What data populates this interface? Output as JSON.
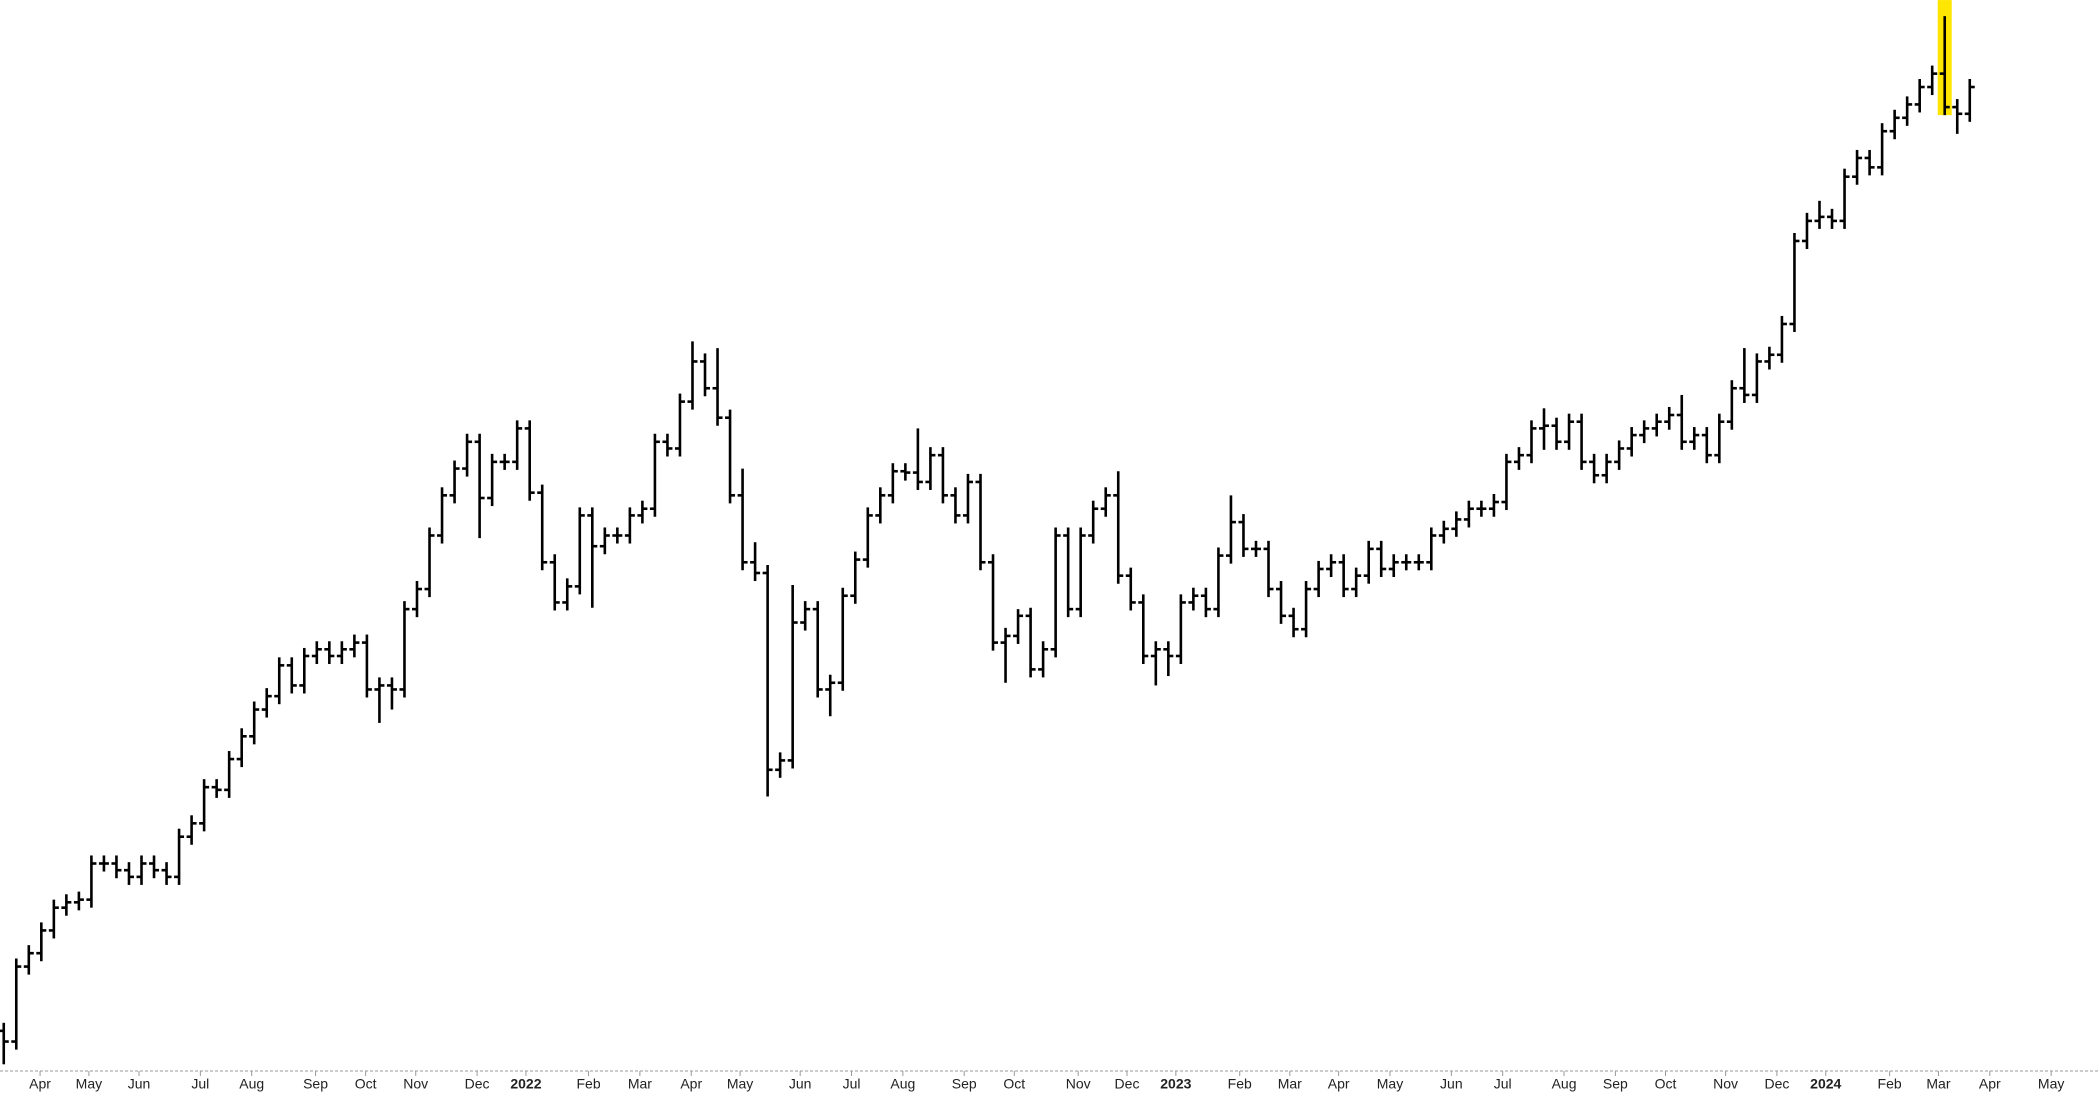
{
  "chart_data": {
    "type": "ohlc",
    "color": "#000000",
    "xlim": [
      -0.3,
      167.4
    ],
    "ylim": [
      0,
      800
    ],
    "highlight": {
      "index": 155,
      "color": "#ffe600"
    },
    "open": [
      30,
      22,
      78,
      88,
      105,
      122,
      126,
      128,
      155,
      155,
      150,
      145,
      155,
      150,
      145,
      175,
      185,
      212,
      210,
      233,
      250,
      270,
      280,
      303,
      288,
      310,
      315,
      310,
      315,
      320,
      285,
      288,
      285,
      345,
      360,
      400,
      430,
      450,
      470,
      428,
      455,
      455,
      480,
      432,
      380,
      350,
      362,
      415,
      392,
      400,
      400,
      415,
      420,
      470,
      465,
      500,
      530,
      510,
      488,
      430,
      380,
      372,
      225,
      232,
      335,
      345,
      285,
      290,
      355,
      382,
      415,
      430,
      448,
      447,
      440,
      460,
      430,
      415,
      440,
      380,
      320,
      325,
      340,
      300,
      315,
      400,
      345,
      400,
      420,
      430,
      370,
      350,
      310,
      315,
      310,
      350,
      355,
      345,
      385,
      410,
      390,
      390,
      360,
      340,
      330,
      360,
      375,
      380,
      360,
      370,
      390,
      375,
      380,
      380,
      380,
      400,
      405,
      412,
      420,
      420,
      425,
      455,
      460,
      480,
      482,
      470,
      485,
      455,
      445,
      455,
      465,
      475,
      480,
      485,
      490,
      470,
      475,
      460,
      485,
      510,
      505,
      530,
      535,
      558,
      620,
      635,
      638,
      635,
      668,
      682,
      675,
      702,
      712,
      722,
      735,
      745,
      720,
      715
    ],
    "high": [
      36,
      84,
      94,
      111,
      128,
      132,
      134,
      161,
      161,
      161,
      156,
      161,
      161,
      156,
      181,
      191,
      218,
      218,
      239,
      256,
      276,
      286,
      309,
      309,
      316,
      321,
      321,
      321,
      326,
      326,
      294,
      294,
      351,
      366,
      406,
      436,
      456,
      476,
      476,
      461,
      461,
      486,
      486,
      438,
      386,
      368,
      421,
      421,
      406,
      406,
      421,
      426,
      476,
      476,
      506,
      545,
      536,
      540,
      494,
      450,
      395,
      378,
      238,
      363,
      351,
      351,
      296,
      361,
      388,
      421,
      436,
      454,
      454,
      480,
      466,
      466,
      436,
      446,
      446,
      386,
      331,
      345,
      346,
      321,
      406,
      406,
      406,
      426,
      436,
      448,
      376,
      356,
      321,
      321,
      356,
      361,
      361,
      391,
      430,
      416,
      396,
      396,
      366,
      346,
      366,
      381,
      386,
      386,
      376,
      396,
      396,
      386,
      386,
      386,
      406,
      411,
      418,
      426,
      426,
      431,
      461,
      466,
      486,
      495,
      488,
      491,
      491,
      461,
      461,
      471,
      481,
      486,
      491,
      496,
      505,
      481,
      481,
      491,
      516,
      540,
      536,
      541,
      564,
      626,
      641,
      650,
      644,
      674,
      688,
      688,
      708,
      718,
      728,
      741,
      751,
      788,
      726,
      741
    ],
    "low": [
      5,
      16,
      72,
      82,
      99,
      116,
      120,
      122,
      149,
      144,
      139,
      139,
      144,
      139,
      139,
      169,
      179,
      204,
      204,
      227,
      244,
      264,
      274,
      282,
      282,
      304,
      304,
      304,
      309,
      279,
      260,
      270,
      279,
      339,
      354,
      394,
      424,
      444,
      398,
      422,
      449,
      449,
      426,
      374,
      344,
      344,
      356,
      346,
      386,
      394,
      394,
      409,
      414,
      459,
      459,
      494,
      504,
      482,
      424,
      374,
      366,
      205,
      219,
      226,
      329,
      279,
      265,
      284,
      349,
      376,
      409,
      424,
      441,
      434,
      434,
      424,
      409,
      409,
      374,
      314,
      290,
      319,
      294,
      294,
      309,
      339,
      339,
      394,
      414,
      364,
      344,
      304,
      288,
      295,
      304,
      344,
      339,
      339,
      379,
      384,
      384,
      354,
      334,
      324,
      324,
      354,
      369,
      354,
      354,
      364,
      369,
      369,
      374,
      374,
      374,
      394,
      399,
      406,
      414,
      414,
      419,
      449,
      454,
      464,
      464,
      464,
      449,
      439,
      439,
      449,
      459,
      469,
      474,
      479,
      464,
      464,
      454,
      454,
      479,
      499,
      499,
      524,
      529,
      552,
      614,
      629,
      629,
      629,
      662,
      669,
      669,
      696,
      706,
      716,
      729,
      714,
      700,
      709
    ],
    "close": [
      22,
      78,
      88,
      105,
      122,
      126,
      128,
      155,
      155,
      150,
      145,
      155,
      150,
      145,
      175,
      185,
      212,
      210,
      233,
      250,
      270,
      280,
      303,
      288,
      310,
      315,
      310,
      315,
      320,
      285,
      288,
      285,
      345,
      360,
      400,
      430,
      450,
      470,
      428,
      455,
      455,
      480,
      432,
      380,
      350,
      362,
      415,
      392,
      400,
      400,
      415,
      420,
      470,
      465,
      500,
      530,
      510,
      488,
      430,
      380,
      372,
      225,
      232,
      335,
      345,
      285,
      290,
      355,
      382,
      415,
      430,
      448,
      447,
      440,
      460,
      430,
      415,
      440,
      380,
      320,
      325,
      340,
      300,
      315,
      400,
      345,
      400,
      420,
      430,
      370,
      350,
      310,
      315,
      310,
      350,
      355,
      345,
      385,
      410,
      390,
      390,
      360,
      340,
      330,
      360,
      375,
      380,
      360,
      370,
      390,
      375,
      380,
      380,
      380,
      400,
      405,
      412,
      420,
      420,
      425,
      455,
      460,
      480,
      482,
      470,
      485,
      455,
      445,
      455,
      465,
      475,
      480,
      485,
      490,
      470,
      475,
      460,
      485,
      510,
      505,
      530,
      535,
      558,
      620,
      635,
      638,
      635,
      668,
      682,
      675,
      702,
      712,
      722,
      735,
      745,
      720,
      715,
      735
    ],
    "xticks": [
      {
        "value": 2.9,
        "label": "Apr"
      },
      {
        "value": 6.8,
        "label": "May"
      },
      {
        "value": 10.8,
        "label": "Jun"
      },
      {
        "value": 15.7,
        "label": "Jul"
      },
      {
        "value": 19.8,
        "label": "Aug"
      },
      {
        "value": 24.9,
        "label": "Sep"
      },
      {
        "value": 28.9,
        "label": "Oct"
      },
      {
        "value": 32.9,
        "label": "Nov"
      },
      {
        "value": 37.8,
        "label": "Dec"
      },
      {
        "value": 41.7,
        "label": "2022"
      },
      {
        "value": 46.7,
        "label": "Feb"
      },
      {
        "value": 50.8,
        "label": "Mar"
      },
      {
        "value": 54.9,
        "label": "Apr"
      },
      {
        "value": 58.8,
        "label": "May"
      },
      {
        "value": 63.6,
        "label": "Jun"
      },
      {
        "value": 67.7,
        "label": "Jul"
      },
      {
        "value": 71.8,
        "label": "Aug"
      },
      {
        "value": 76.7,
        "label": "Sep"
      },
      {
        "value": 80.7,
        "label": "Oct"
      },
      {
        "value": 85.8,
        "label": "Nov"
      },
      {
        "value": 89.7,
        "label": "Dec"
      },
      {
        "value": 93.6,
        "label": "2023"
      },
      {
        "value": 98.7,
        "label": "Feb"
      },
      {
        "value": 102.7,
        "label": "Mar"
      },
      {
        "value": 106.6,
        "label": "Apr"
      },
      {
        "value": 110.7,
        "label": "May"
      },
      {
        "value": 115.6,
        "label": "Jun"
      },
      {
        "value": 119.7,
        "label": "Jul"
      },
      {
        "value": 124.6,
        "label": "Aug"
      },
      {
        "value": 128.7,
        "label": "Sep"
      },
      {
        "value": 132.7,
        "label": "Oct"
      },
      {
        "value": 137.5,
        "label": "Nov"
      },
      {
        "value": 141.6,
        "label": "Dec"
      },
      {
        "value": 145.5,
        "label": "2024"
      },
      {
        "value": 150.6,
        "label": "Feb"
      },
      {
        "value": 154.5,
        "label": "Mar"
      },
      {
        "value": 158.6,
        "label": "Apr"
      },
      {
        "value": 163.5,
        "label": "May"
      }
    ]
  }
}
